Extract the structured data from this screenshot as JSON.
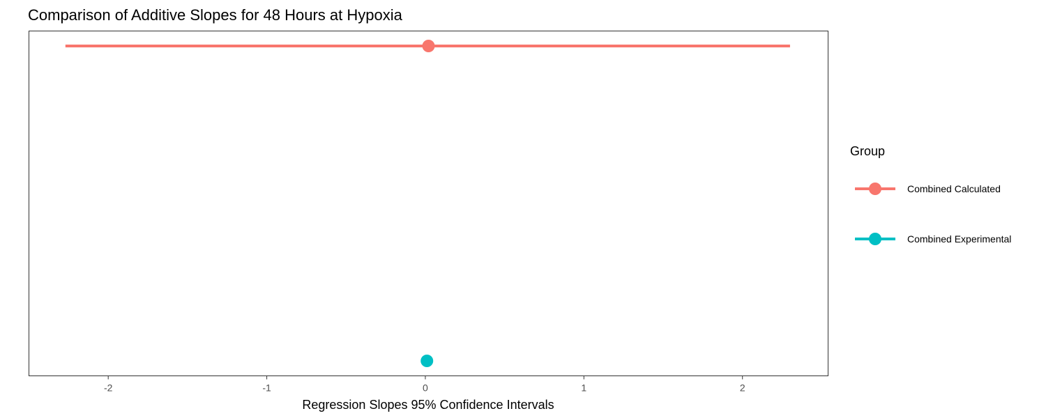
{
  "chart_data": {
    "type": "scatter",
    "title": "Comparison of Additive Slopes for 48 Hours at Hypoxia",
    "xlabel": "Regression Slopes 95% Confidence Intervals",
    "ylabel": "",
    "xlim": [
      -2.5,
      2.54
    ],
    "x_ticks": [
      -2,
      -1,
      0,
      1,
      2
    ],
    "x_tick_labels": [
      "-2",
      "-1",
      "0",
      "1",
      "2"
    ],
    "y_ticks_shown": false,
    "grid": false,
    "legend": {
      "title": "Group",
      "position": "right"
    },
    "series": [
      {
        "name": "Combined Calculated",
        "color": "#F8766D",
        "estimate": 0.02,
        "ci_low": -2.27,
        "ci_high": 2.3
      },
      {
        "name": "Combined Experimental",
        "color": "#00BFC4",
        "estimate": 0.01,
        "ci_low": 0.01,
        "ci_high": 0.01
      }
    ]
  }
}
